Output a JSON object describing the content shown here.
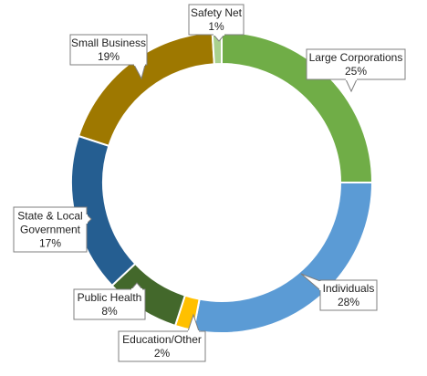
{
  "chart_data": {
    "type": "pie",
    "donut": true,
    "categories": [
      "Large Corporations",
      "Individuals",
      "Education/Other",
      "Public Health",
      "State & Local Government",
      "Small Business",
      "Safety Net"
    ],
    "values": [
      25,
      28,
      2,
      8,
      17,
      19,
      1
    ],
    "data_labels": [
      [
        "Large Corporations",
        "25%"
      ],
      [
        "Individuals",
        "28%"
      ],
      [
        "Education/Other",
        "2%"
      ],
      [
        "Public Health",
        "8%"
      ],
      [
        "State & Local",
        "Government",
        "17%"
      ],
      [
        "Small Business",
        "19%"
      ],
      [
        "Safety Net",
        "1%"
      ]
    ],
    "colors": [
      "#70ad47",
      "#5b9bd5",
      "#ffc000",
      "#43682b",
      "#255e91",
      "#9e7800",
      "#a9d18e"
    ],
    "legend": "none"
  }
}
